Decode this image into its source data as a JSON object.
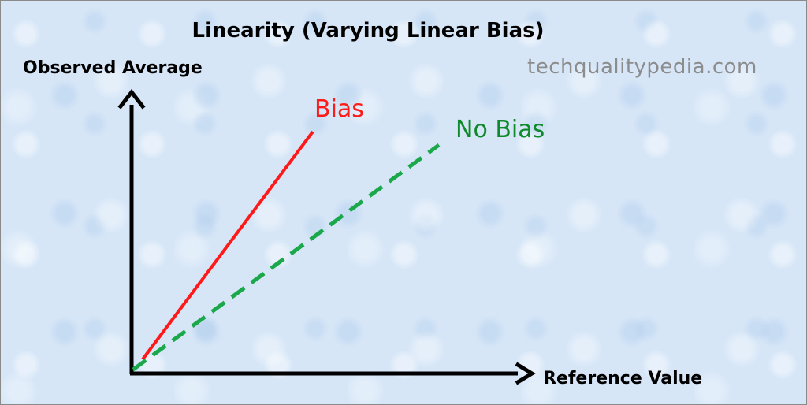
{
  "title": "Linearity (Varying Linear Bias)",
  "watermark": "techqualitypedia.com",
  "axes": {
    "y_label": "Observed Average",
    "x_label": "Reference Value"
  },
  "lines": [
    {
      "name": "Bias",
      "color": "#ff1a1a",
      "style": "solid"
    },
    {
      "name": "No Bias",
      "color": "#1aa84a",
      "style": "dashed"
    }
  ],
  "colors": {
    "axis": "#000000",
    "bias": "#ff1a1a",
    "no_bias": "#1aa84a",
    "background": "#d6e6f7"
  }
}
